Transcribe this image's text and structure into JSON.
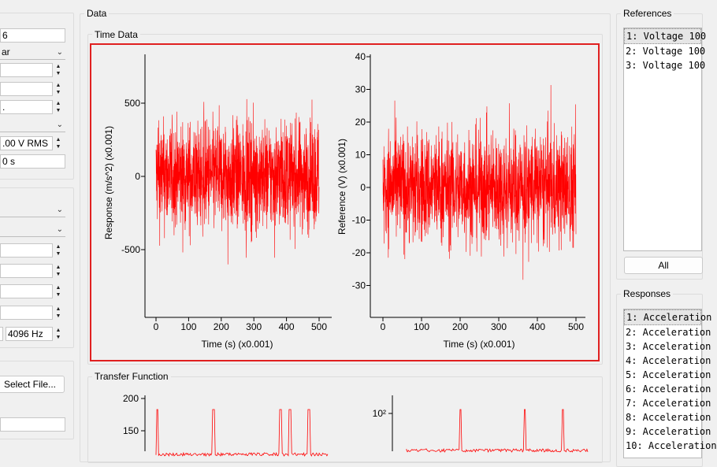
{
  "left_panel": {
    "fields": [
      {
        "value": "6"
      },
      {
        "value": "ar"
      },
      {
        "value": ""
      },
      {
        "value": ""
      },
      {
        "value": ""
      },
      {
        "value": ""
      },
      {
        "value": ".00 V RMS"
      },
      {
        "value": "0 s"
      }
    ],
    "fields2": [
      {
        "value": ""
      },
      {
        "value": ""
      },
      {
        "value": ""
      },
      {
        "value": ""
      },
      {
        "value": ""
      },
      {
        "value": ""
      },
      {
        "value": "4096 Hz"
      }
    ],
    "select_file_label": "Select File...",
    "file_path": ""
  },
  "data_group": {
    "title": "Data",
    "time_data": {
      "title": "Time Data",
      "response_plot": {
        "ylabel": "Response (m/s^2) (x0.001)",
        "xlabel": "Time (s) (x0.001)",
        "yticks": [
          "500",
          "0",
          "-500"
        ],
        "xticks": [
          "0",
          "100",
          "200",
          "300",
          "400",
          "500"
        ]
      },
      "reference_plot": {
        "ylabel": "Reference (V) (x0.001)",
        "xlabel": "Time (s) (x0.001)",
        "yticks": [
          "40",
          "30",
          "20",
          "10",
          "0",
          "-10",
          "-20",
          "-30"
        ],
        "xticks": [
          "0",
          "100",
          "200",
          "300",
          "400",
          "500"
        ]
      }
    },
    "transfer_function": {
      "title": "Transfer Function",
      "left_yticks": [
        "200",
        "150"
      ],
      "right_ytick": "10²"
    }
  },
  "references": {
    "title": "References",
    "items": [
      "1: Voltage 100",
      "2: Voltage 100",
      "3: Voltage 100"
    ],
    "all_label": "All"
  },
  "responses": {
    "title": "Responses",
    "items": [
      "1: Acceleration",
      "2: Acceleration",
      "3: Acceleration",
      "4: Acceleration",
      "5: Acceleration",
      "6: Acceleration",
      "7: Acceleration",
      "8: Acceleration",
      "9: Acceleration",
      "10: Acceleration"
    ]
  },
  "colors": {
    "trace": "#ff0000",
    "highlight_border": "#e02020"
  }
}
